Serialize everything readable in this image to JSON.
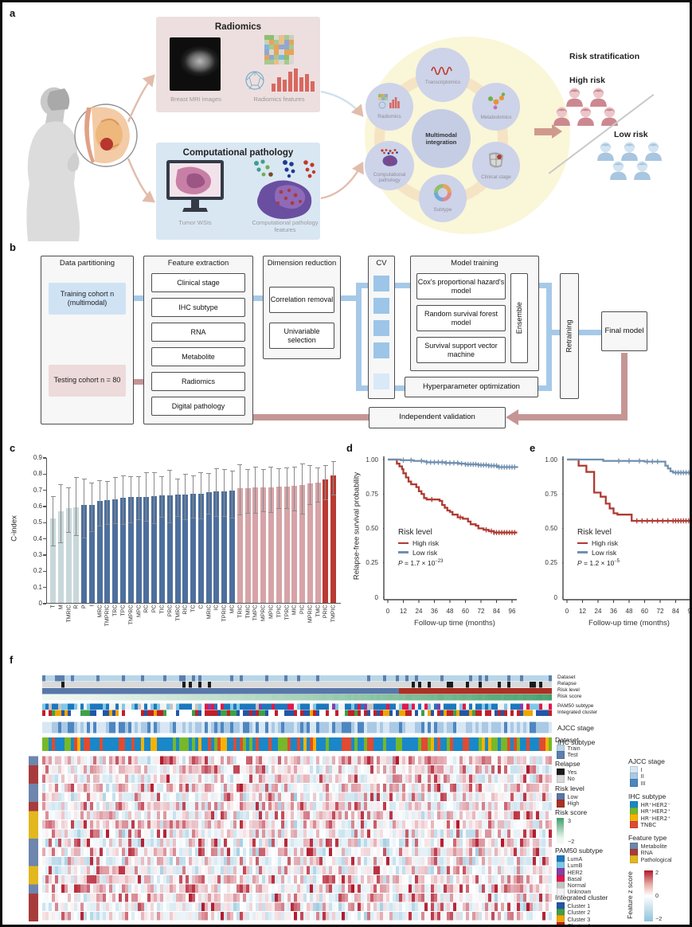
{
  "a": {
    "label": "a",
    "radiomics_title": "Radiomics",
    "mri_caption": "Breast MRI images",
    "radiomics_caption": "Radiomics features",
    "pathology_title": "Computational pathology",
    "wsi_caption": "Tumor WSIs",
    "pathology_caption": "Computational pathology features",
    "center_label": "Multimodal integration",
    "nodes": [
      "Transcriptomics",
      "Metabolomics",
      "Clinical stage",
      "Subtype",
      "Computational pathology",
      "Radiomics"
    ],
    "risk_title": "Risk stratification",
    "high_risk": "High risk",
    "low_risk": "Low risk"
  },
  "b": {
    "label": "b",
    "data_partitioning": "Data partitioning",
    "training": "Training cohort n (multimodal)",
    "testing": "Testing cohort n = 80",
    "feature_extraction": "Feature extraction",
    "features": [
      "Clinical stage",
      "IHC subtype",
      "RNA",
      "Metabolite",
      "Radiomics",
      "Digital pathology"
    ],
    "dimension_reduction": "Dimension reduction",
    "dim_items": [
      "Correlation removal",
      "Univariable selection"
    ],
    "cv": "CV",
    "model_training": "Model training",
    "models": [
      "Cox's proportional hazard's model",
      "Random survival forest model",
      "Survival support vector machine"
    ],
    "ensemble": "Ensemble",
    "hyperparameter": "Hyperparameter optimization",
    "retraining": "Retraining",
    "final_model": "Final model",
    "independent_validation": "Independent validation"
  },
  "c": {
    "label": "c",
    "ylabel": "C-index"
  },
  "d": {
    "label": "d",
    "ylabel": "Relapse-free survival probability",
    "xlabel": "Follow-up time (months)",
    "legend_title": "Risk level",
    "high": "High risk",
    "low": "Low risk",
    "p_base": " = 1.7 × 10",
    "p_exp": "−23"
  },
  "e": {
    "label": "e",
    "xlabel": "Follow-up time (months)",
    "legend_title": "Risk level",
    "high": "High risk",
    "low": "Low risk",
    "p_base": " = 1.2 × 10",
    "p_exp": "−5"
  },
  "f": {
    "label": "f",
    "row_labels": [
      "Dataset",
      "Relapse",
      "Risk level",
      "Risk score",
      "PAM50 subtype",
      "Integrated cluster",
      "AJCC stage",
      "IHC subtype"
    ],
    "legend": {
      "dataset": {
        "title": "Dataset",
        "items": [
          "Train",
          "Test"
        ]
      },
      "relapse": {
        "title": "Relapse",
        "items": [
          "Yes",
          "No"
        ]
      },
      "risk_level": {
        "title": "Risk level",
        "items": [
          "Low",
          "High"
        ]
      },
      "risk_score": {
        "title": "Risk score",
        "max": "3",
        "min": "−2"
      },
      "pam50": {
        "title": "PAM50 subtype",
        "items": [
          "LumA",
          "LumB",
          "HER2",
          "Basal",
          "Normal",
          "Unknown"
        ]
      },
      "cluster": {
        "title": "Integrated cluster",
        "items": [
          "Cluster 1",
          "Cluster 2",
          "Cluster 3",
          "Cluster 4"
        ]
      },
      "ajcc": {
        "title": "AJCC stage",
        "items": [
          "I",
          "II",
          "III"
        ]
      },
      "ihc": {
        "title": "IHC subtype",
        "items": [
          "HR⁺HER2⁻",
          "HR⁺HER2⁺",
          "HR⁻HER2⁺",
          "TNBC"
        ]
      },
      "feature_type": {
        "title": "Feature type",
        "items": [
          "Metabolite",
          "RNA",
          "Pathological"
        ]
      },
      "zscore": {
        "title": "Feature z score",
        "ticks": [
          "2",
          "0",
          "−2"
        ]
      }
    }
  },
  "colors": {
    "bar_groups": [
      "#c8d7da",
      "#4d6f9d",
      "#d6a3a7",
      "#b93a32"
    ],
    "km_high": "#ae3a32",
    "km_low": "#7090b0",
    "dataset": [
      "#b9d5e8",
      "#5b7fae"
    ],
    "relapse": [
      "#1a1a1a",
      "#d9d9d9"
    ],
    "risk_level": [
      "#5878a8",
      "#a93226"
    ],
    "risk_score_hi": "#3f9e68",
    "risk_score_lo": "#f2f9f4",
    "pam50": [
      "#1c78be",
      "#7ec8e8",
      "#8041a8",
      "#e2184c",
      "#c4c4c4",
      "#f2f2f2"
    ],
    "cluster": [
      "#2356a7",
      "#3fa048",
      "#f0a500",
      "#c0202a"
    ],
    "ajcc": [
      "#d8e7f4",
      "#a9c9e5",
      "#4e86c0"
    ],
    "ihc": [
      "#1a87c8",
      "#76b82a",
      "#f5b301",
      "#e04b31"
    ],
    "feature_type": [
      "#6e85ad",
      "#a83c3c",
      "#e3b71e"
    ],
    "z_pos": "#b2182b",
    "z_neg": "#8fc3dc",
    "person_high": [
      "#cc8890",
      "#ecc6ca"
    ],
    "person_low": [
      "#a9c6e0",
      "#d3e4f1"
    ]
  },
  "chart_data": [
    {
      "type": "bar",
      "panel": "c",
      "ylabel": "C-index",
      "ylim": [
        0,
        0.9
      ],
      "yticks": [
        "0",
        "0.1",
        "0.2",
        "0.3",
        "0.4",
        "0.5",
        "0.6",
        "0.7",
        "0.8",
        "0.9"
      ],
      "categories": [
        "T",
        "M",
        "TMRIC",
        "R",
        "P",
        "I",
        "MRC",
        "TMPRIC",
        "TRC",
        "TPC",
        "TMPRC",
        "MPC",
        "RC",
        "PC",
        "TIC",
        "PRC",
        "TMRC",
        "RIC",
        "TC",
        "C",
        "MRIC",
        "IC",
        "TPRIC",
        "MC",
        "TRIC",
        "TMIC",
        "TMPC",
        "MPRC",
        "MPIC",
        "TPIC",
        "TPRC",
        "MIC",
        "PIC",
        "MPRIC",
        "TMC",
        "PRIC",
        "TMPIC"
      ],
      "values": [
        0.52,
        0.565,
        0.585,
        0.59,
        0.605,
        0.607,
        0.63,
        0.635,
        0.64,
        0.648,
        0.652,
        0.654,
        0.656,
        0.66,
        0.662,
        0.665,
        0.668,
        0.67,
        0.672,
        0.676,
        0.685,
        0.688,
        0.69,
        0.693,
        0.708,
        0.71,
        0.711,
        0.712,
        0.713,
        0.716,
        0.72,
        0.725,
        0.727,
        0.74,
        0.745,
        0.762,
        0.785
      ],
      "err_low": [
        0.36,
        0.38,
        0.445,
        0.425,
        0.41,
        0.45,
        0.48,
        0.49,
        0.495,
        0.49,
        0.5,
        0.52,
        0.51,
        0.495,
        0.535,
        0.5,
        0.54,
        0.52,
        0.53,
        0.525,
        0.555,
        0.54,
        0.54,
        0.53,
        0.55,
        0.56,
        0.56,
        0.57,
        0.565,
        0.59,
        0.59,
        0.575,
        0.555,
        0.615,
        0.63,
        0.645,
        0.675
      ],
      "err_high": [
        0.665,
        0.74,
        0.72,
        0.78,
        0.77,
        0.75,
        0.76,
        0.755,
        0.78,
        0.79,
        0.785,
        0.785,
        0.81,
        0.81,
        0.785,
        0.825,
        0.77,
        0.8,
        0.79,
        0.81,
        0.805,
        0.835,
        0.83,
        0.82,
        0.86,
        0.83,
        0.845,
        0.83,
        0.845,
        0.835,
        0.84,
        0.845,
        0.865,
        0.855,
        0.84,
        0.855,
        0.88
      ],
      "group_index": [
        0,
        0,
        0,
        0,
        1,
        1,
        1,
        1,
        1,
        1,
        1,
        1,
        1,
        1,
        1,
        1,
        1,
        1,
        1,
        1,
        1,
        1,
        1,
        1,
        2,
        2,
        2,
        2,
        2,
        2,
        2,
        2,
        2,
        2,
        2,
        3,
        3
      ]
    },
    {
      "type": "line",
      "subtype": "kaplan-meier",
      "panel": "d",
      "xlabel": "Follow-up time (months)",
      "ylabel": "Relapse-free survival probability",
      "xticks": [
        0,
        12,
        24,
        36,
        48,
        60,
        72,
        84,
        96
      ],
      "yticks": [
        "1.00",
        "0.75",
        "0.50",
        "0.25",
        "0"
      ],
      "p_value": "P = 1.7 × 10^−23",
      "series": [
        {
          "name": "High risk",
          "points": [
            [
              0,
              1.0
            ],
            [
              5,
              1.0
            ],
            [
              7,
              0.97
            ],
            [
              9,
              0.95
            ],
            [
              11,
              0.93
            ],
            [
              12,
              0.9
            ],
            [
              14,
              0.87
            ],
            [
              16,
              0.84
            ],
            [
              18,
              0.82
            ],
            [
              22,
              0.8
            ],
            [
              24,
              0.77
            ],
            [
              26,
              0.75
            ],
            [
              28,
              0.72
            ],
            [
              30,
              0.71
            ],
            [
              40,
              0.7
            ],
            [
              42,
              0.67
            ],
            [
              44,
              0.65
            ],
            [
              46,
              0.63
            ],
            [
              48,
              0.62
            ],
            [
              50,
              0.6
            ],
            [
              54,
              0.58
            ],
            [
              58,
              0.57
            ],
            [
              62,
              0.55
            ],
            [
              64,
              0.53
            ],
            [
              68,
              0.52
            ],
            [
              70,
              0.5
            ],
            [
              74,
              0.49
            ],
            [
              78,
              0.48
            ],
            [
              82,
              0.47
            ],
            [
              100,
              0.47
            ]
          ],
          "censor_times": [
            34,
            56,
            76,
            80,
            82,
            84,
            86,
            88,
            90,
            92,
            94,
            96,
            98
          ]
        },
        {
          "name": "Low risk",
          "points": [
            [
              0,
              1.0
            ],
            [
              10,
              0.995
            ],
            [
              20,
              0.99
            ],
            [
              28,
              0.985
            ],
            [
              30,
              0.98
            ],
            [
              44,
              0.975
            ],
            [
              55,
              0.97
            ],
            [
              60,
              0.965
            ],
            [
              70,
              0.96
            ],
            [
              78,
              0.955
            ],
            [
              85,
              0.945
            ],
            [
              100,
              0.94
            ]
          ],
          "censor_times": [
            12,
            18,
            26,
            30,
            33,
            36,
            39,
            42,
            45,
            48,
            51,
            54,
            57,
            60,
            62,
            64,
            66,
            68,
            70,
            72,
            74,
            76,
            78,
            80,
            82,
            84,
            86,
            88,
            90,
            92,
            94,
            96,
            98
          ]
        }
      ]
    },
    {
      "type": "line",
      "subtype": "kaplan-meier",
      "panel": "e",
      "xlabel": "Follow-up time (months)",
      "ylabel": "",
      "xticks": [
        0,
        12,
        24,
        36,
        48,
        60,
        72,
        84,
        96
      ],
      "yticks": [
        "1.00",
        "0.75",
        "0.50",
        "0.25",
        "0"
      ],
      "p_value": "P = 1.2 × 10^−5",
      "series": [
        {
          "name": "High risk",
          "points": [
            [
              0,
              1.0
            ],
            [
              8,
              1.0
            ],
            [
              9,
              0.955
            ],
            [
              14,
              0.955
            ],
            [
              15,
              0.91
            ],
            [
              20,
              0.91
            ],
            [
              21,
              0.76
            ],
            [
              25,
              0.76
            ],
            [
              26,
              0.73
            ],
            [
              29,
              0.73
            ],
            [
              30,
              0.68
            ],
            [
              32,
              0.68
            ],
            [
              33,
              0.645
            ],
            [
              35,
              0.645
            ],
            [
              36,
              0.61
            ],
            [
              38,
              0.61
            ],
            [
              39,
              0.6
            ],
            [
              49,
              0.6
            ],
            [
              50,
              0.555
            ],
            [
              100,
              0.555
            ]
          ],
          "censor_times": [
            54,
            58,
            62,
            66,
            70,
            74,
            78,
            82,
            84,
            86,
            88,
            90,
            92,
            94,
            96
          ]
        },
        {
          "name": "Low risk",
          "points": [
            [
              0,
              1.0
            ],
            [
              27,
              1.0
            ],
            [
              28,
              0.99
            ],
            [
              58,
              0.99
            ],
            [
              60,
              0.985
            ],
            [
              74,
              0.985
            ],
            [
              76,
              0.955
            ],
            [
              78,
              0.935
            ],
            [
              80,
              0.915
            ],
            [
              82,
              0.905
            ],
            [
              100,
              0.905
            ]
          ],
          "censor_times": [
            40,
            48,
            56,
            62,
            66,
            70,
            84,
            86,
            88,
            90,
            92,
            94,
            96
          ]
        }
      ]
    },
    {
      "type": "heatmap",
      "panel": "f",
      "columns": 160,
      "rows": 18,
      "annotation_rows": [
        "Dataset",
        "Relapse",
        "Risk level",
        "Risk score",
        "PAM50 subtype",
        "Integrated cluster",
        "AJCC stage",
        "IHC subtype"
      ],
      "feature_row_types": [
        "Metabolite",
        "RNA",
        "RNA",
        "Metabolite",
        "Metabolite",
        "RNA",
        "Pathological",
        "Pathological",
        "Pathological",
        "Metabolite",
        "Metabolite",
        "Metabolite",
        "Pathological",
        "Pathological",
        "Metabolite",
        "RNA",
        "RNA",
        "RNA"
      ],
      "risk_level_split": 0.7,
      "zscore_range": [
        -2,
        2
      ],
      "risk_score_range": [
        -2,
        3
      ]
    }
  ]
}
